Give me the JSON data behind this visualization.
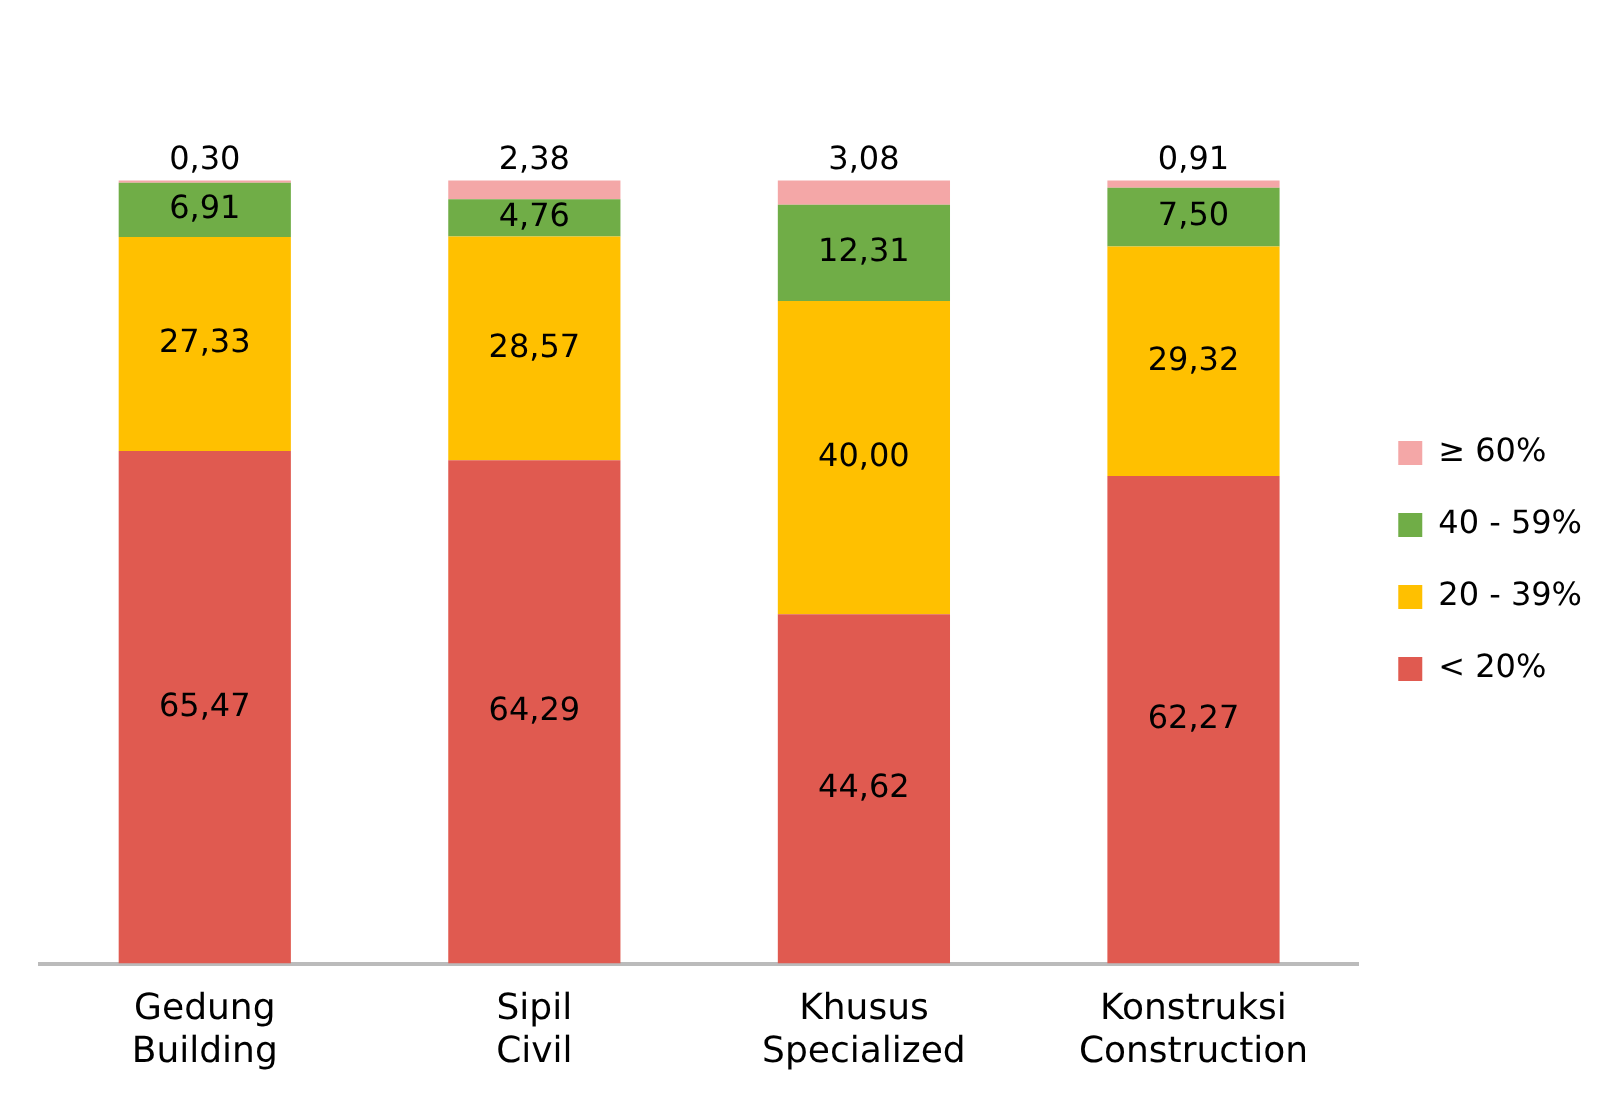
{
  "chart_data": {
    "type": "bar",
    "stacked": true,
    "categories": [
      "Gedung\nBuilding",
      "Sipil\nCivil",
      "Khusus\nSpecialized",
      "Konstruksi\nConstruction"
    ],
    "series": [
      {
        "name": "< 20%",
        "color": "#e05a50",
        "values": [
          65.47,
          64.29,
          44.62,
          62.27
        ],
        "value_labels": [
          "65,47",
          "64,29",
          "44,62",
          "62,27"
        ]
      },
      {
        "name": "20 - 39%",
        "color": "#ffc000",
        "values": [
          27.33,
          28.57,
          40.0,
          29.32
        ],
        "value_labels": [
          "27,33",
          "28,57",
          "40,00",
          "29,32"
        ]
      },
      {
        "name": "40 - 59%",
        "color": "#70ad47",
        "values": [
          6.91,
          4.76,
          12.31,
          7.5
        ],
        "value_labels": [
          "6,91",
          "4,76",
          "12,31",
          "7,50"
        ]
      },
      {
        "name": "≥ 60%",
        "color": "#f4a7a7",
        "values": [
          0.3,
          2.38,
          3.08,
          0.91
        ],
        "value_labels": [
          "0,30",
          "2,38",
          "3,08",
          "0,91"
        ]
      }
    ],
    "legend": "right",
    "grid": false,
    "tick_labels": "x"
  }
}
